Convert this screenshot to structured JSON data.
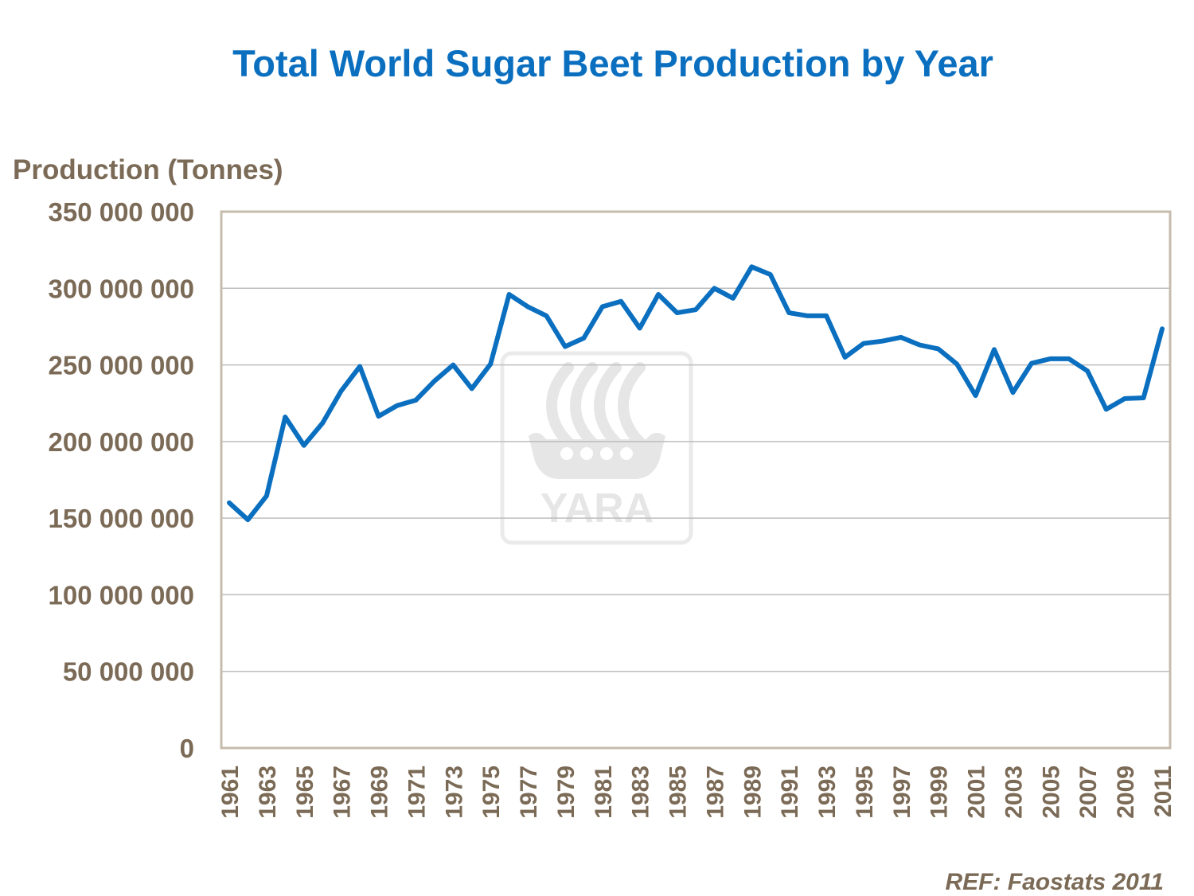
{
  "chart_data": {
    "type": "line",
    "title": "Total World Sugar Beet Production by Year",
    "xlabel": "",
    "ylabel": "Production (Tonnes)",
    "ylim": [
      0,
      350000000
    ],
    "yticks": [
      0,
      50000000,
      100000000,
      150000000,
      200000000,
      250000000,
      300000000,
      350000000
    ],
    "ytick_labels": [
      "0",
      "50 000 000",
      "100 000 000",
      "150 000 000",
      "200 000 000",
      "250 000 000",
      "300 000 000",
      "350 000 000"
    ],
    "xtick_labels": [
      "1961",
      "1963",
      "1965",
      "1967",
      "1969",
      "1971",
      "1973",
      "1975",
      "1977",
      "1979",
      "1981",
      "1983",
      "1985",
      "1987",
      "1989",
      "1991",
      "1993",
      "1995",
      "1997",
      "1999",
      "2001",
      "2003",
      "2005",
      "2007",
      "2009",
      "2011"
    ],
    "grid": true,
    "line_color": "#0b6fc0",
    "series": [
      {
        "name": "Sugar beet production",
        "x": [
          1961,
          1962,
          1963,
          1964,
          1965,
          1966,
          1967,
          1968,
          1969,
          1970,
          1971,
          1972,
          1973,
          1974,
          1975,
          1976,
          1977,
          1978,
          1979,
          1980,
          1981,
          1982,
          1983,
          1984,
          1985,
          1986,
          1987,
          1988,
          1989,
          1990,
          1991,
          1992,
          1993,
          1994,
          1995,
          1996,
          1997,
          1998,
          1999,
          2000,
          2001,
          2002,
          2003,
          2004,
          2005,
          2006,
          2007,
          2008,
          2009,
          2010,
          2011
        ],
        "values": [
          160000000,
          149000000,
          164500000,
          216000000,
          197500000,
          212000000,
          233000000,
          249000000,
          216500000,
          223500000,
          227000000,
          239500000,
          250000000,
          234500000,
          250500000,
          296000000,
          288000000,
          282000000,
          262000000,
          267500000,
          288000000,
          291500000,
          274000000,
          296000000,
          284000000,
          286000000,
          300000000,
          293500000,
          314000000,
          309000000,
          284000000,
          282000000,
          282000000,
          255000000,
          264000000,
          265500000,
          268000000,
          263000000,
          260500000,
          250500000,
          230000000,
          260000000,
          232000000,
          251000000,
          254000000,
          254000000,
          246000000,
          221000000,
          228000000,
          228500000,
          273500000
        ]
      }
    ]
  },
  "watermark": {
    "text": "YARA"
  },
  "reference": "REF: Faostats 2011"
}
